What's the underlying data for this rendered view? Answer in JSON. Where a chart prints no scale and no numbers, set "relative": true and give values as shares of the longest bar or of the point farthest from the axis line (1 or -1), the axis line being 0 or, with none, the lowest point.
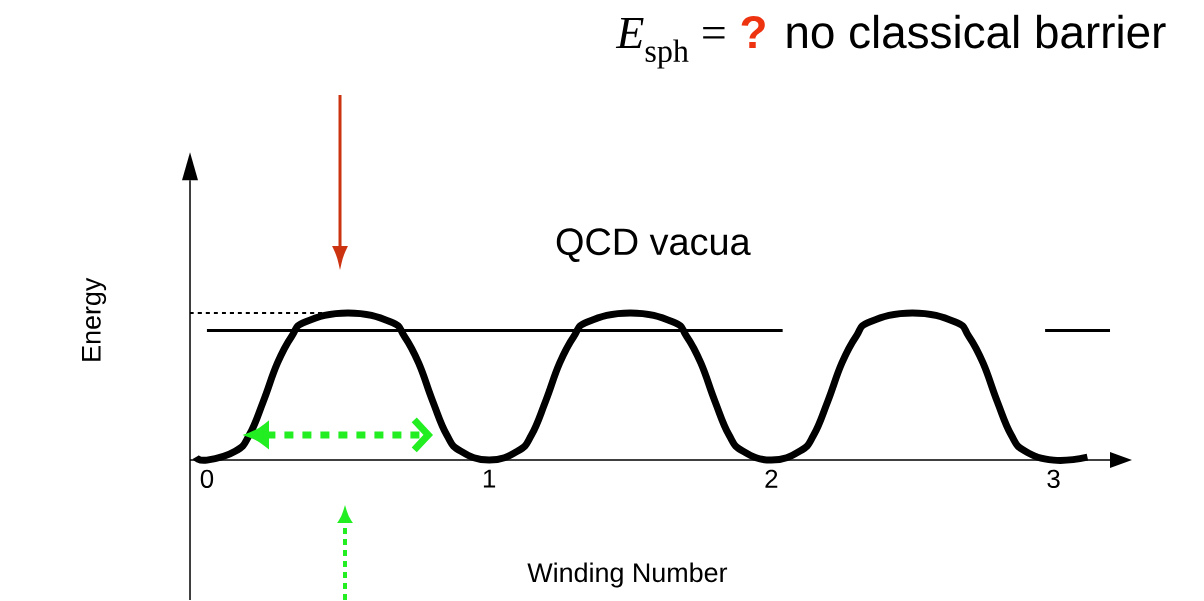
{
  "chart_data": {
    "type": "line",
    "relative": true,
    "title": "*E*$_{sph}$ =",
    "annotations": [
      "?",
      "no classical barrier",
      "QCD vacua"
    ],
    "xlabel": "Winding Number",
    "ylabel": "Energy",
    "xlim": [
      -0.06,
      3.2
    ],
    "xticks": [
      0,
      1,
      2,
      3
    ],
    "tick_labels": "x",
    "series": [
      {
        "color": "#000000",
        "x": [
          -0.04,
          0,
          0.1,
          0.15,
          0.2,
          0.25,
          0.3,
          0.35,
          0.5,
          0.65,
          0.7,
          0.75,
          0.8,
          0.85,
          0.9,
          1,
          1.1,
          1.15,
          1.2,
          1.25,
          1.3,
          1.35,
          1.5,
          1.65,
          1.7,
          1.75,
          1.8,
          1.85,
          1.9,
          2,
          2.1,
          2.15,
          2.2,
          2.25,
          2.3,
          2.35,
          2.5,
          2.65,
          2.7,
          2.75,
          2.8,
          2.85,
          2.9,
          3,
          3.12
        ],
        "values": [
          0.02,
          0,
          0.06,
          0.17,
          0.4,
          0.66,
          0.84,
          0.94,
          1,
          0.94,
          0.84,
          0.66,
          0.4,
          0.17,
          0.06,
          0,
          0.06,
          0.17,
          0.4,
          0.66,
          0.84,
          0.94,
          1,
          0.94,
          0.84,
          0.66,
          0.4,
          0.17,
          0.06,
          0,
          0.06,
          0.17,
          0.4,
          0.66,
          0.84,
          0.94,
          1,
          0.94,
          0.84,
          0.66,
          0.4,
          0.17,
          0.06,
          0,
          0.02
        ]
      },
      {
        "color": "#000000",
        "x": [
          0,
          2.04,
          2.5,
          2.97,
          3.2
        ],
        "values": [
          0.88,
          0.88,
          null,
          0.88,
          0.88
        ]
      },
      {
        "color": "#000000",
        "line_style": "dotted",
        "x": [
          -0.06,
          0.44
        ],
        "values": [
          1,
          1
        ]
      }
    ]
  }
}
